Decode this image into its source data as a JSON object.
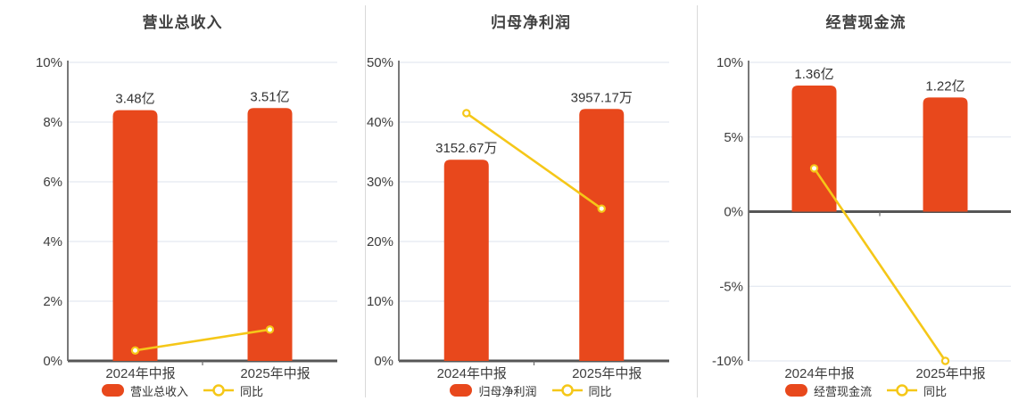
{
  "colors": {
    "background": "#ffffff",
    "bar": "#e8481c",
    "line": "#f5c718",
    "marker_fill": "#ffffff",
    "grid": "#dde3ee",
    "axis": "#6a6a6a",
    "baseline": "#565656",
    "title_text": "#404040",
    "tick_text": "#3d3d3d",
    "category_text": "#3d3d3d",
    "value_text": "#333333",
    "legend_text": "#333333",
    "divider": "#d9d9d9"
  },
  "chart_data": [
    {
      "type": "bar+line",
      "title": "营业总收入",
      "categories": [
        "2024年中报",
        "2025年中报"
      ],
      "series": [
        {
          "name": "营业总收入",
          "type": "bar",
          "value_labels": [
            "3.48亿",
            "3.51亿"
          ],
          "plotted_percent": [
            8.4,
            8.47
          ]
        },
        {
          "name": "同比",
          "type": "line",
          "plotted_percent": [
            0.35,
            1.05
          ]
        }
      ],
      "ylim": [
        0,
        10
      ],
      "yticks": [
        10,
        8,
        6,
        4,
        2,
        0
      ],
      "ytick_suffix": "%",
      "grid": true,
      "legend_position": "bottom"
    },
    {
      "type": "bar+line",
      "title": "归母净利润",
      "categories": [
        "2024年中报",
        "2025年中报"
      ],
      "series": [
        {
          "name": "归母净利润",
          "type": "bar",
          "value_labels": [
            "3152.67万",
            "3957.17万"
          ],
          "plotted_percent": [
            33.7,
            42.2
          ]
        },
        {
          "name": "同比",
          "type": "line",
          "plotted_percent": [
            41.5,
            25.5
          ]
        }
      ],
      "ylim": [
        0,
        50
      ],
      "yticks": [
        50,
        40,
        30,
        20,
        10,
        0
      ],
      "ytick_suffix": "%",
      "grid": true,
      "legend_position": "bottom"
    },
    {
      "type": "bar+line",
      "title": "经营现金流",
      "categories": [
        "2024年中报",
        "2025年中报"
      ],
      "series": [
        {
          "name": "经营现金流",
          "type": "bar",
          "value_labels": [
            "1.36亿",
            "1.22亿"
          ],
          "plotted_percent": [
            8.45,
            7.65
          ]
        },
        {
          "name": "同比",
          "type": "line",
          "plotted_percent": [
            2.9,
            -10.0
          ]
        }
      ],
      "ylim": [
        -10,
        10
      ],
      "yticks": [
        10,
        5,
        0,
        -5,
        -10
      ],
      "ytick_suffix": "%",
      "grid": true,
      "legend_position": "bottom"
    }
  ]
}
